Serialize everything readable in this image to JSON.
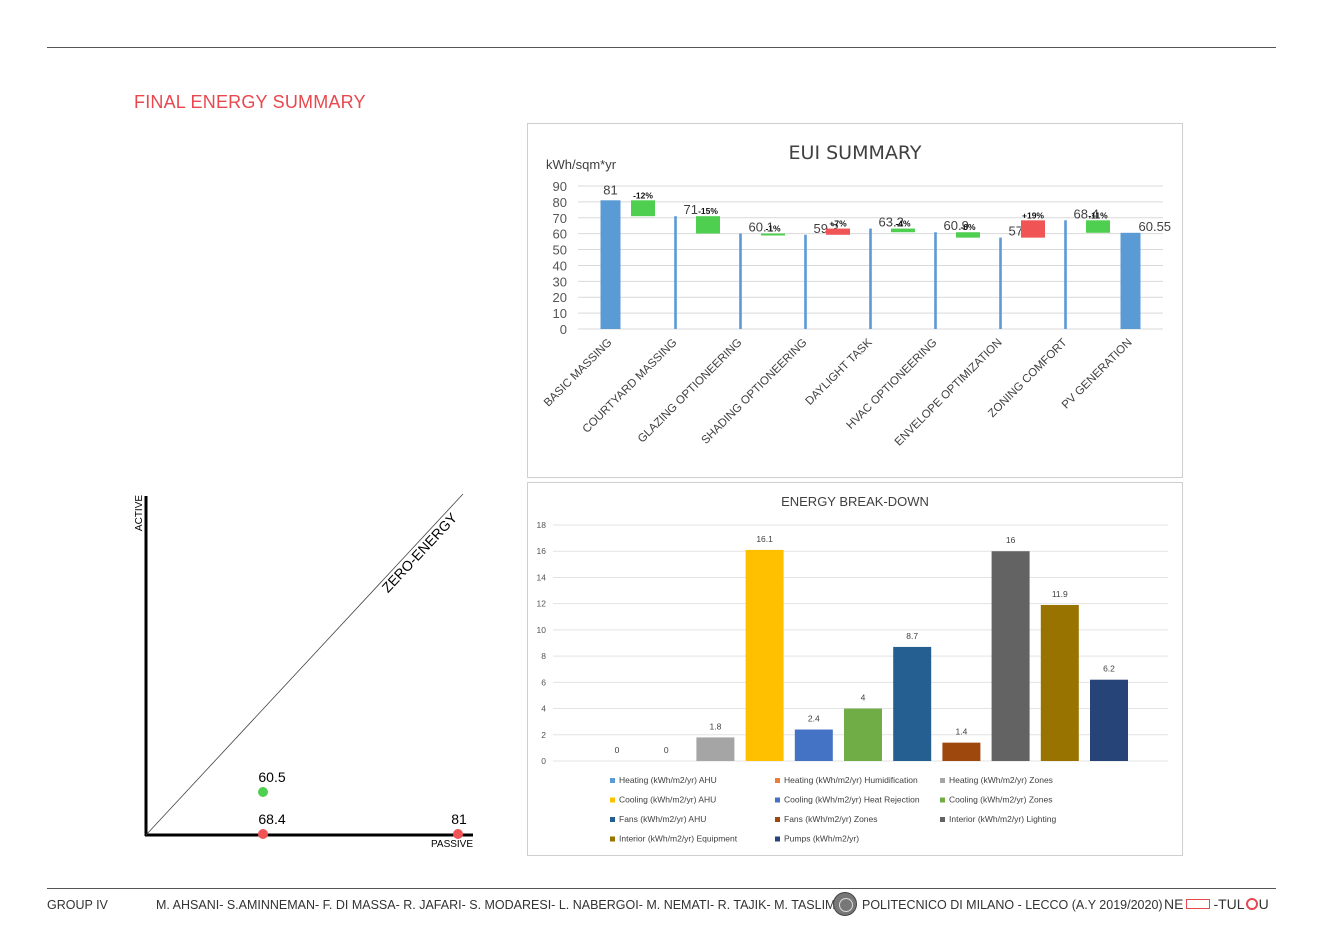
{
  "page": {
    "title": "FINAL ENERGY SUMMARY"
  },
  "footer": {
    "group": "GROUP IV",
    "authors": "M. AHSANI- S.AMINNEMAN- F. DI MASSA- R. JAFARI- S. MODARESI- L. NABERGOI- M. NEMATI- R. TAJIK- M. TASLIMI",
    "university": "POLITECNICO DI MILANO - LECCO (A.Y 2019/2020)",
    "logo_left": "NE",
    "logo_right": "-TUL",
    "logo_end": "U"
  },
  "colors": {
    "accent_red": "#e8484e",
    "bar_blue": "#5b9bd5",
    "decrease_green": "#4fcf4f",
    "increase_red": "#f05454",
    "dot_green": "#4fcf4f",
    "dot_red": "#f05454"
  },
  "chart_data": [
    {
      "type": "bar",
      "subtype": "waterfall",
      "title": "EUI SUMMARY",
      "ylabel": "kWh/sqm*yr",
      "ylim": [
        0,
        90
      ],
      "yticks": [
        0,
        10,
        20,
        30,
        40,
        50,
        60,
        70,
        80,
        90
      ],
      "grid": true,
      "categories": [
        "BASIC MASSING",
        "COURTYARD MASSING",
        "GLAZING OPTIONEERING",
        "SHADING OPTIONEERING",
        "DAYLIGHT TASK",
        "HVAC OPTIONEERING",
        "ENVELOPE OPTIMIZATION",
        "ZONING COMFORT",
        "PV GENERATION"
      ],
      "values": [
        81,
        71,
        60.1,
        59.3,
        63.2,
        60.9,
        57.5,
        68.4,
        60.55
      ],
      "value_labels": [
        "81",
        "71",
        "60.1",
        "59.3",
        "63.2",
        "60.9",
        "57.5",
        "68.4",
        "60.55"
      ],
      "changes": [
        {
          "label": "-12%",
          "from": 81,
          "to": 71,
          "direction": "decrease"
        },
        {
          "label": "-15%",
          "from": 71,
          "to": 60.1,
          "direction": "decrease"
        },
        {
          "label": "-1%",
          "from": 60.1,
          "to": 59.3,
          "direction": "decrease"
        },
        {
          "label": "+7%",
          "from": 59.3,
          "to": 63.2,
          "direction": "increase"
        },
        {
          "label": "-4%",
          "from": 63.2,
          "to": 60.9,
          "direction": "decrease"
        },
        {
          "label": "-6%",
          "from": 60.9,
          "to": 57.5,
          "direction": "decrease"
        },
        {
          "label": "+19%",
          "from": 57.5,
          "to": 68.4,
          "direction": "increase"
        },
        {
          "label": "-11%",
          "from": 68.4,
          "to": 60.55,
          "direction": "decrease"
        }
      ]
    },
    {
      "type": "bar",
      "title": "ENERGY BREAK-DOWN",
      "ylim": [
        0,
        18
      ],
      "yticks": [
        0,
        2,
        4,
        6,
        8,
        10,
        12,
        14,
        16,
        18
      ],
      "grid": true,
      "legend_position": "bottom",
      "series": [
        {
          "name": "Heating (kWh/m2/yr) AHU",
          "value": 0,
          "label": "0",
          "color": "#5b9bd5"
        },
        {
          "name": "Heating (kWh/m2/yr) Humidification",
          "value": 0,
          "label": "0",
          "color": "#ed7d31"
        },
        {
          "name": "Heating (kWh/m2/yr) Zones",
          "value": 1.8,
          "label": "1.8",
          "color": "#a5a5a5"
        },
        {
          "name": "Cooling (kWh/m2/yr) AHU",
          "value": 16.1,
          "label": "16.1",
          "color": "#ffc000"
        },
        {
          "name": "Cooling (kWh/m2/yr) Heat Rejection",
          "value": 2.4,
          "label": "2.4",
          "color": "#4472c4"
        },
        {
          "name": "Cooling (kWh/m2/yr) Zones",
          "value": 4,
          "label": "4",
          "color": "#70ad47"
        },
        {
          "name": "Fans (kWh/m2/yr) AHU",
          "value": 8.7,
          "label": "8.7",
          "color": "#255e91"
        },
        {
          "name": "Fans (kWh/m2/yr) Zones",
          "value": 1.4,
          "label": "1.4",
          "color": "#9e480e"
        },
        {
          "name": "Interior (kWh/m2/yr) Lighting",
          "value": 16,
          "label": "16",
          "color": "#636363"
        },
        {
          "name": "Interior (kWh/m2/yr) Equipment",
          "value": 11.9,
          "label": "11.9",
          "color": "#997300"
        },
        {
          "name": "Pumps (kWh/m2/yr)",
          "value": 6.2,
          "label": "6.2",
          "color": "#264478"
        }
      ]
    },
    {
      "type": "scatter",
      "xlabel": "PASSIVE",
      "ylabel": "ACTIVE",
      "diagonal_label": "ZERO-ENERGY",
      "points": [
        {
          "label": "60.5",
          "color": "#4fcf4f"
        },
        {
          "label": "68.4",
          "color": "#f05454"
        },
        {
          "label": "81",
          "color": "#f05454"
        }
      ]
    }
  ]
}
